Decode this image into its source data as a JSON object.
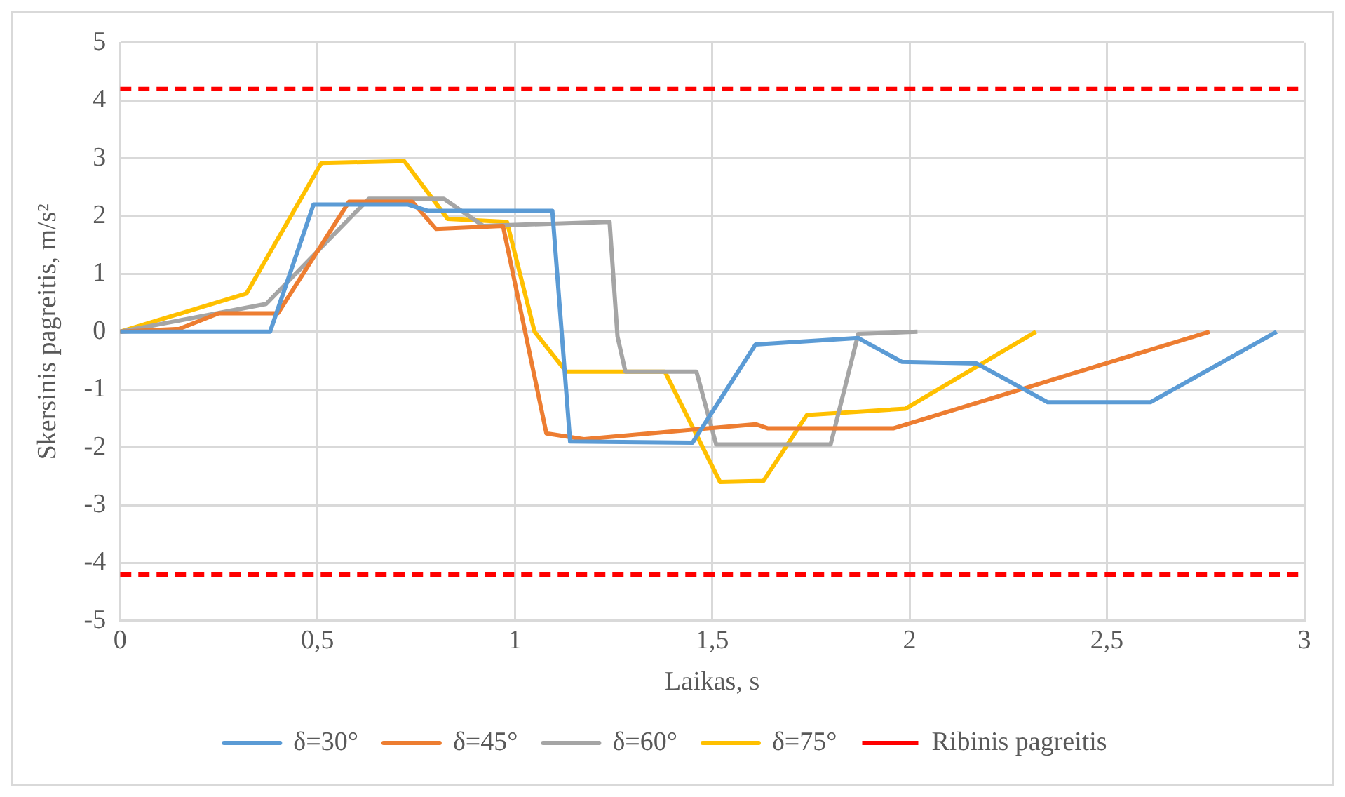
{
  "chart_data": {
    "type": "line",
    "xlabel": "Laikas, s",
    "ylabel": "Skersinis pagreitis, m/s²",
    "xlim": [
      0,
      3
    ],
    "xticks": [
      0,
      {
        "value": 0.5,
        "label": "0,5"
      },
      1,
      {
        "value": 1.5,
        "label": "1,5"
      },
      2,
      {
        "value": 2.5,
        "label": "2,5"
      },
      3
    ],
    "ylim": [
      -5,
      5
    ],
    "yticks": [
      -5,
      -4,
      -3,
      -2,
      -1,
      0,
      1,
      2,
      3,
      4,
      5
    ],
    "grid": true,
    "legend": "bottom",
    "marker": "none",
    "line_style": "solid",
    "series": [
      {
        "name": "δ=30°",
        "color": "#5b9bd5",
        "x": [
          0,
          0.38,
          0.49,
          0.73,
          0.78,
          1.095,
          1.14,
          1.45,
          1.61,
          1.87,
          1.98,
          2.17,
          2.35,
          2.61,
          2.93
        ],
        "values": [
          0,
          0,
          2.2,
          2.2,
          2.09,
          2.09,
          -1.9,
          -1.92,
          -0.22,
          -0.11,
          -0.52,
          -0.55,
          -1.22,
          -1.22,
          0
        ]
      },
      {
        "name": "δ=45°",
        "color": "#ed7d31",
        "x": [
          0,
          0.15,
          0.25,
          0.4,
          0.58,
          0.74,
          0.8,
          0.97,
          1.08,
          1.175,
          1.61,
          1.64,
          1.96,
          2.76
        ],
        "values": [
          0,
          0.05,
          0.32,
          0.32,
          2.25,
          2.25,
          1.78,
          1.83,
          -1.76,
          -1.86,
          -1.6,
          -1.67,
          -1.67,
          0
        ]
      },
      {
        "name": "δ=60°",
        "color": "#a5a5a5",
        "x": [
          0,
          0.37,
          0.63,
          0.82,
          0.92,
          1.24,
          1.26,
          1.28,
          1.46,
          1.51,
          1.8,
          1.87,
          2.02
        ],
        "values": [
          0,
          0.48,
          2.3,
          2.3,
          1.83,
          1.9,
          -0.08,
          -0.69,
          -0.69,
          -1.95,
          -1.95,
          -0.04,
          0
        ]
      },
      {
        "name": "δ=75°",
        "color": "#ffc000",
        "x": [
          0,
          0.32,
          0.51,
          0.72,
          0.83,
          0.98,
          1.05,
          1.13,
          1.38,
          1.52,
          1.63,
          1.74,
          1.99,
          2.32
        ],
        "values": [
          0,
          0.66,
          2.92,
          2.95,
          1.95,
          1.9,
          0,
          -0.69,
          -0.69,
          -2.6,
          -2.58,
          -1.44,
          -1.33,
          0
        ]
      }
    ],
    "ref_lines": [
      {
        "axis": "y",
        "value": 4.2,
        "label": "Ribinis pagreitis",
        "color": "#ff0000",
        "line_style": "dashed"
      },
      {
        "axis": "y",
        "value": -4.2,
        "color": "#ff0000",
        "line_style": "dashed"
      }
    ]
  }
}
